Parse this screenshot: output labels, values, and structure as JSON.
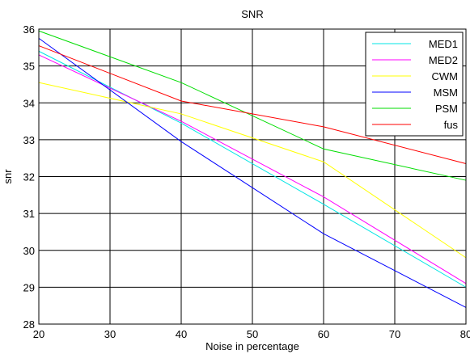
{
  "chart_data": {
    "type": "line",
    "title": "SNR",
    "xlabel": "Noise in percentage",
    "ylabel": "snr",
    "xlim": [
      20,
      80
    ],
    "ylim": [
      28,
      36
    ],
    "xticks": [
      20,
      30,
      40,
      50,
      60,
      70,
      80
    ],
    "yticks": [
      28,
      29,
      30,
      31,
      32,
      33,
      34,
      35,
      36
    ],
    "grid": true,
    "legend_position": "top-right",
    "x": [
      20,
      40,
      60,
      80
    ],
    "series": [
      {
        "name": "MED1",
        "color": "#00e5e5",
        "values": [
          35.4,
          33.45,
          31.25,
          29.0
        ]
      },
      {
        "name": "MED2",
        "color": "#ff00ff",
        "values": [
          35.3,
          33.5,
          31.45,
          29.1
        ]
      },
      {
        "name": "CWM",
        "color": "#ffff00",
        "values": [
          34.55,
          33.7,
          32.4,
          29.8
        ]
      },
      {
        "name": "MSM",
        "color": "#0000ff",
        "values": [
          35.75,
          32.95,
          30.45,
          28.45
        ]
      },
      {
        "name": "PSM",
        "color": "#00dd00",
        "values": [
          35.95,
          34.55,
          32.75,
          31.9
        ]
      },
      {
        "name": "fus",
        "color": "#ff0000",
        "values": [
          35.55,
          34.05,
          33.35,
          32.35
        ]
      }
    ]
  }
}
